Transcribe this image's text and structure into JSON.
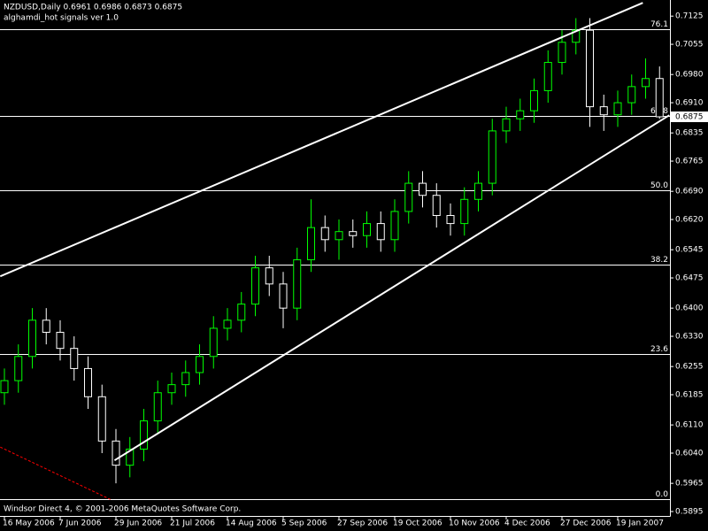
{
  "chart_data": {
    "type": "candlestick",
    "title": "NZDUSD,Daily  0.6961 0.6986 0.6873 0.6875",
    "subtitle": "alghamdi_hot signals ver 1.0",
    "footer": "Windsor Direct 4, © 2001-2006 MetaQuotes Software Corp.",
    "categories": [
      "16 May 2006",
      null,
      null,
      null,
      "7 Jun 2006",
      null,
      null,
      null,
      "29 Jun 2006",
      null,
      null,
      null,
      "21 Jul 2006",
      null,
      null,
      null,
      "14 Aug 2006",
      null,
      null,
      null,
      "5 Sep 2006",
      null,
      null,
      null,
      "27 Sep 2006",
      null,
      null,
      null,
      "19 Oct 2006",
      null,
      null,
      null,
      "10 Nov 2006",
      null,
      null,
      null,
      "4 Dec 2006",
      null,
      null,
      null,
      "27 Dec 2006",
      null,
      null,
      null,
      "19 Jan 2007",
      null,
      null,
      null
    ],
    "open": [
      0.619,
      0.622,
      0.628,
      0.637,
      0.634,
      0.63,
      0.625,
      0.618,
      0.607,
      0.601,
      0.605,
      0.612,
      0.619,
      0.621,
      0.624,
      0.628,
      0.635,
      0.637,
      0.641,
      0.65,
      0.646,
      0.64,
      0.652,
      0.66,
      0.657,
      0.659,
      0.658,
      0.661,
      0.657,
      0.664,
      0.671,
      0.668,
      0.663,
      0.661,
      0.667,
      0.671,
      0.684,
      0.687,
      0.689,
      0.694,
      0.701,
      0.706,
      0.709,
      0.69,
      0.688,
      0.691,
      0.695,
      0.697
    ],
    "high": [
      0.625,
      0.631,
      0.64,
      0.64,
      0.637,
      0.633,
      0.628,
      0.621,
      0.61,
      0.608,
      0.615,
      0.622,
      0.624,
      0.627,
      0.631,
      0.638,
      0.64,
      0.644,
      0.653,
      0.653,
      0.649,
      0.655,
      0.667,
      0.663,
      0.662,
      0.662,
      0.664,
      0.664,
      0.667,
      0.674,
      0.674,
      0.671,
      0.666,
      0.67,
      0.674,
      0.687,
      0.69,
      0.692,
      0.697,
      0.704,
      0.709,
      0.712,
      0.712,
      0.693,
      0.694,
      0.698,
      0.702,
      0.7
    ],
    "low": [
      0.616,
      0.619,
      0.625,
      0.631,
      0.627,
      0.622,
      0.615,
      0.604,
      0.5965,
      0.598,
      0.602,
      0.609,
      0.616,
      0.618,
      0.621,
      0.625,
      0.632,
      0.634,
      0.638,
      0.643,
      0.635,
      0.637,
      0.649,
      0.654,
      0.652,
      0.655,
      0.655,
      0.654,
      0.654,
      0.661,
      0.665,
      0.66,
      0.658,
      0.658,
      0.664,
      0.668,
      0.681,
      0.684,
      0.686,
      0.691,
      0.698,
      0.703,
      0.685,
      0.684,
      0.685,
      0.688,
      0.692,
      0.687
    ],
    "close": [
      0.622,
      0.628,
      0.637,
      0.634,
      0.63,
      0.625,
      0.618,
      0.607,
      0.601,
      0.605,
      0.612,
      0.619,
      0.621,
      0.624,
      0.628,
      0.635,
      0.637,
      0.641,
      0.65,
      0.646,
      0.64,
      0.652,
      0.66,
      0.657,
      0.659,
      0.658,
      0.661,
      0.657,
      0.664,
      0.671,
      0.668,
      0.663,
      0.661,
      0.667,
      0.671,
      0.684,
      0.687,
      0.689,
      0.694,
      0.701,
      0.706,
      0.709,
      0.69,
      0.688,
      0.691,
      0.695,
      0.697,
      0.6875
    ],
    "up_color": "#00ff00",
    "down_color": "#ffffff",
    "ylim": [
      0.5884,
      0.7165
    ],
    "yticks": [
      0.7125,
      0.7055,
      {
        "value": 0.698,
        "label": "0.6980"
      },
      {
        "value": 0.691,
        "label": "0.6910"
      },
      0.6835,
      0.6765,
      {
        "value": 0.669,
        "label": "0.6690"
      },
      {
        "value": 0.662,
        "label": "0.6620"
      },
      0.6545,
      0.6475,
      {
        "value": 0.64,
        "label": "0.6400"
      },
      {
        "value": 0.633,
        "label": "0.6330"
      },
      0.6255,
      0.6185,
      {
        "value": 0.611,
        "label": "0.6110"
      },
      {
        "value": 0.604,
        "label": "0.6040"
      },
      0.5965,
      0.5895
    ],
    "last_price": 0.6875,
    "levels": [
      {
        "label": "76.1",
        "price": 0.7092
      },
      {
        "label": "61.8",
        "price": 0.6877
      },
      {
        "label": "50.0",
        "price": 0.6692
      },
      {
        "label": "38.2",
        "price": 0.6508
      },
      {
        "label": "23.6",
        "price": 0.6286
      },
      {
        "label": "0.0",
        "price": 0.5925
      }
    ],
    "trendlines": [
      {
        "from": [
          -0.3,
          0.6479
        ],
        "to": [
          45.8,
          0.7158
        ],
        "color": "#ffffff"
      },
      {
        "from": [
          7.9,
          0.6022
        ],
        "to": [
          47.7,
          0.6879
        ],
        "color": "#ffffff"
      },
      {
        "from": [
          -0.3,
          0.6055
        ],
        "to": [
          7.6,
          0.5925
        ],
        "color": "#ff0000",
        "dashed": true
      }
    ]
  }
}
